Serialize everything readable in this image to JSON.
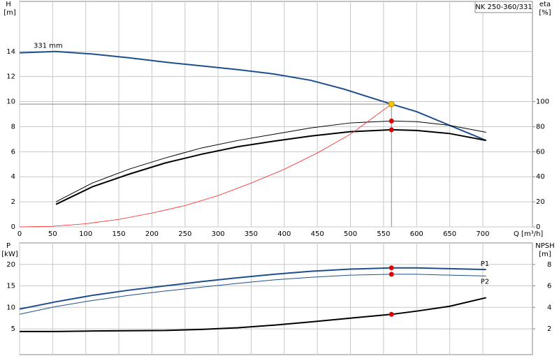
{
  "chart_data": [
    {
      "type": "line",
      "legend_box": "NK 250-360/331",
      "annotation": "331 mm",
      "ylabel": "H",
      "yunit": "[m]",
      "y2label": "eta",
      "y2unit": "[%]",
      "xlabel": "Q [m³/h]",
      "xlim": [
        0,
        775
      ],
      "xticks": [
        0,
        50,
        100,
        150,
        200,
        250,
        300,
        350,
        400,
        450,
        500,
        550,
        600,
        650,
        700
      ],
      "ylim": [
        0,
        18
      ],
      "yticks": [
        0,
        2,
        4,
        6,
        8,
        10,
        12,
        14
      ],
      "y2lim": [
        0,
        180
      ],
      "y2ticks": [
        0,
        20,
        40,
        60,
        80,
        100
      ],
      "grid": true,
      "duty_point": {
        "x": 562,
        "y": 9.8,
        "color": "#f5c400"
      },
      "series": [
        {
          "color": "#1f4e8c",
          "line_width": 2,
          "x": [
            0,
            55,
            110,
            165,
            220,
            275,
            330,
            385,
            440,
            490,
            562,
            600,
            650,
            705
          ],
          "values": [
            13.9,
            14.0,
            13.8,
            13.5,
            13.15,
            12.85,
            12.55,
            12.2,
            11.7,
            11.0,
            9.8,
            9.2,
            8.1,
            6.9
          ]
        },
        {
          "color": "#000000",
          "line_width": 2,
          "axis": "y2",
          "x": [
            55,
            110,
            165,
            220,
            275,
            330,
            385,
            440,
            500,
            562,
            600,
            650,
            705
          ],
          "values": [
            18,
            32,
            42,
            51,
            58,
            64,
            68.5,
            72.5,
            76,
            77.5,
            77,
            74.5,
            69
          ]
        },
        {
          "color": "#000000",
          "line_width": 1,
          "axis": "y2",
          "x": [
            55,
            110,
            165,
            220,
            275,
            330,
            385,
            440,
            500,
            562,
            600,
            650,
            705
          ],
          "values": [
            20,
            35,
            46,
            55,
            63,
            69,
            74,
            79,
            83,
            84.5,
            84,
            81,
            75.5
          ]
        },
        {
          "color": "#ff2020",
          "line_width": 0.8,
          "x": [
            0,
            50,
            100,
            150,
            200,
            250,
            300,
            350,
            400,
            450,
            500,
            562
          ],
          "values": [
            0,
            0.05,
            0.25,
            0.6,
            1.1,
            1.7,
            2.5,
            3.5,
            4.6,
            5.9,
            7.4,
            9.8
          ]
        }
      ]
    },
    {
      "type": "line",
      "ylabel": "P",
      "yunit": "[kW]",
      "y2label": "NPSH",
      "y2unit": "[m]",
      "xlim": [
        0,
        775
      ],
      "xticks": [
        0,
        50,
        100,
        150,
        200,
        250,
        300,
        350,
        400,
        450,
        500,
        550,
        600,
        650,
        700
      ],
      "ylim": [
        -1,
        25
      ],
      "yticks": [
        5,
        10,
        15,
        20
      ],
      "y2lim": [
        -0.4,
        10
      ],
      "y2ticks": [
        2,
        4,
        6,
        8
      ],
      "grid": true,
      "duty_point": {
        "x": 562
      },
      "series": [
        {
          "name": "P1",
          "color": "#1f4e8c",
          "line_width": 2,
          "x": [
            0,
            55,
            110,
            165,
            220,
            275,
            330,
            385,
            440,
            500,
            562,
            600,
            650,
            705
          ],
          "values": [
            9.6,
            11.3,
            12.8,
            14.0,
            15.0,
            16.0,
            16.9,
            17.7,
            18.4,
            18.9,
            19.2,
            19.2,
            19.0,
            18.8
          ]
        },
        {
          "name": "P2",
          "color": "#1f4e8c",
          "line_width": 1,
          "x": [
            0,
            55,
            110,
            165,
            220,
            275,
            330,
            385,
            440,
            500,
            562,
            600,
            650,
            705
          ],
          "values": [
            8.4,
            10.2,
            11.6,
            12.8,
            13.8,
            14.7,
            15.6,
            16.4,
            17.0,
            17.5,
            17.7,
            17.7,
            17.5,
            17.3
          ]
        },
        {
          "color": "#000000",
          "line_width": 2,
          "axis": "y2",
          "x": [
            0,
            55,
            110,
            220,
            275,
            330,
            385,
            440,
            500,
            562,
            600,
            650,
            705
          ],
          "values": [
            1.75,
            1.75,
            1.8,
            1.85,
            1.95,
            2.1,
            2.35,
            2.65,
            3.0,
            3.35,
            3.65,
            4.1,
            4.9
          ]
        }
      ]
    }
  ]
}
